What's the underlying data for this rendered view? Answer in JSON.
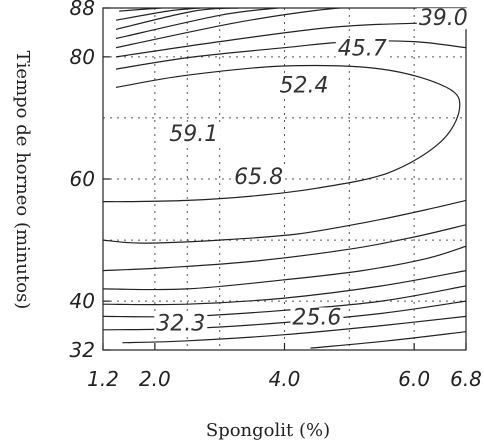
{
  "chart_data": {
    "type": "contour",
    "title": "",
    "xlabel": "Spongolit (%)",
    "ylabel": "Tiempo de horneo (minutos)",
    "xlim": [
      1.2,
      6.8
    ],
    "ylim": [
      32,
      88
    ],
    "x_ticks": [
      "1.2",
      "2.0",
      "4.0",
      "6.0",
      "6.8"
    ],
    "y_ticks": [
      "32",
      "40",
      "60",
      "80",
      "88"
    ],
    "grid": true,
    "contour_labels": [
      {
        "text": "39.0",
        "x": 6.45,
        "y": 86.5
      },
      {
        "text": "45.7",
        "x": 5.2,
        "y": 81.5
      },
      {
        "text": "52.4",
        "x": 4.3,
        "y": 75.5
      },
      {
        "text": "59.1",
        "x": 2.6,
        "y": 67.5
      },
      {
        "text": "65.8",
        "x": 3.6,
        "y": 60.5
      },
      {
        "text": "32.3",
        "x": 2.4,
        "y": 36.5
      },
      {
        "text": "25.6",
        "x": 4.5,
        "y": 37.5
      }
    ],
    "contours": [
      {
        "points": [
          [
            1.45,
            87.5
          ],
          [
            2.1,
            88
          ]
        ]
      },
      {
        "points": [
          [
            1.4,
            86
          ],
          [
            2.2,
            87.5
          ],
          [
            2.7,
            88
          ]
        ]
      },
      {
        "points": [
          [
            1.4,
            84.5
          ],
          [
            2.6,
            87.5
          ],
          [
            3.3,
            88
          ]
        ]
      },
      {
        "points": [
          [
            1.4,
            83
          ],
          [
            3.0,
            86.8
          ],
          [
            3.9,
            88
          ]
        ]
      },
      {
        "points": [
          [
            1.4,
            81.5
          ],
          [
            3.2,
            85.5
          ],
          [
            4.4,
            87.5
          ],
          [
            5.2,
            88.3
          ]
        ]
      },
      {
        "points": [
          [
            1.4,
            80
          ],
          [
            3.0,
            82.5
          ],
          [
            4.7,
            84.8
          ],
          [
            6.0,
            85.5
          ],
          [
            6.8,
            85.3
          ]
        ]
      },
      {
        "points": [
          [
            1.4,
            78
          ],
          [
            2.6,
            80
          ],
          [
            4.0,
            81.5
          ],
          [
            5.0,
            82.5
          ],
          [
            6.0,
            82.5
          ],
          [
            6.8,
            81.5
          ]
        ]
      },
      {
        "points": [
          [
            1.4,
            75
          ],
          [
            2.5,
            77
          ],
          [
            4.0,
            78.5
          ],
          [
            5.5,
            78
          ],
          [
            6.5,
            75
          ],
          [
            6.7,
            71.5
          ],
          [
            6.4,
            66
          ],
          [
            5.6,
            61
          ],
          [
            4.5,
            58.5
          ],
          [
            3.5,
            57.2
          ],
          [
            2.5,
            56.5
          ],
          [
            1.6,
            56.3
          ],
          [
            1.2,
            56.3
          ]
        ]
      },
      {
        "points": [
          [
            1.2,
            50
          ],
          [
            1.8,
            49.5
          ],
          [
            3.0,
            50
          ],
          [
            4.2,
            51
          ],
          [
            5.3,
            53
          ],
          [
            6.2,
            55
          ],
          [
            6.8,
            56.5
          ]
        ]
      },
      {
        "points": [
          [
            1.2,
            45
          ],
          [
            2.2,
            45.5
          ],
          [
            3.5,
            46.5
          ],
          [
            5.0,
            48.5
          ],
          [
            6.0,
            50.5
          ],
          [
            6.8,
            52.5
          ]
        ]
      },
      {
        "points": [
          [
            1.2,
            42
          ],
          [
            2.5,
            42
          ],
          [
            4.0,
            43.5
          ],
          [
            5.2,
            45
          ],
          [
            6.2,
            47
          ],
          [
            6.8,
            49
          ]
        ]
      },
      {
        "points": [
          [
            1.2,
            39.5
          ],
          [
            2.5,
            39.5
          ],
          [
            4.0,
            40.5
          ],
          [
            5.5,
            42.5
          ],
          [
            6.8,
            45
          ]
        ]
      },
      {
        "points": [
          [
            1.2,
            37.5
          ],
          [
            2.5,
            37.5
          ],
          [
            4.0,
            38.5
          ],
          [
            5.5,
            40
          ],
          [
            6.8,
            42.5
          ]
        ]
      },
      {
        "points": [
          [
            1.2,
            35.3
          ],
          [
            2.5,
            35.5
          ],
          [
            4.0,
            36.5
          ],
          [
            5.5,
            38
          ],
          [
            6.8,
            40
          ]
        ]
      },
      {
        "points": [
          [
            1.5,
            33.2
          ],
          [
            2.5,
            33.5
          ],
          [
            4.0,
            34.5
          ],
          [
            5.5,
            36
          ],
          [
            6.8,
            37.5
          ]
        ]
      },
      {
        "points": [
          [
            4.4,
            32.3
          ],
          [
            5.6,
            33.5
          ],
          [
            6.8,
            35
          ]
        ]
      }
    ]
  }
}
